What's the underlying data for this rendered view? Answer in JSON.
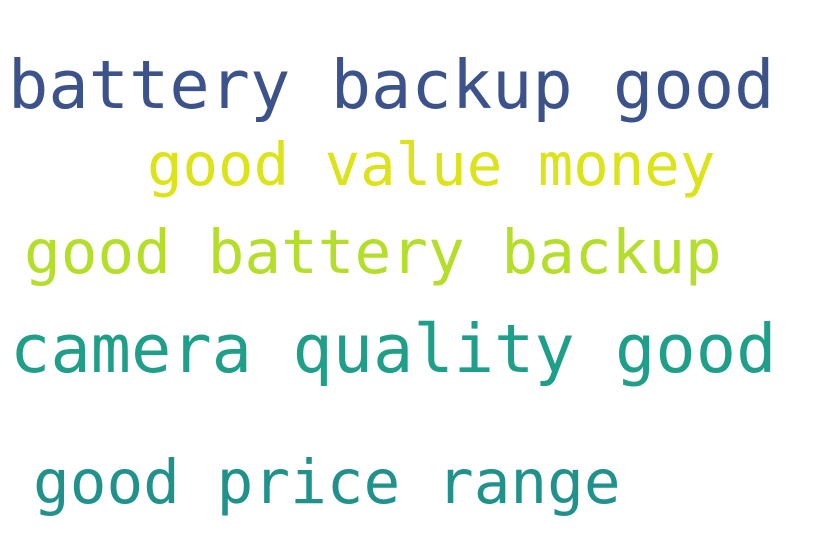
{
  "phrases": [
    {
      "text": "battery backup good",
      "color": "#3b528b"
    },
    {
      "text": "good value money",
      "color": "#dce319"
    },
    {
      "text": "good battery backup",
      "color": "#b5de2b"
    },
    {
      "text": "camera quality good",
      "color": "#1f9e89"
    },
    {
      "text": "good price range",
      "color": "#21918c"
    }
  ]
}
